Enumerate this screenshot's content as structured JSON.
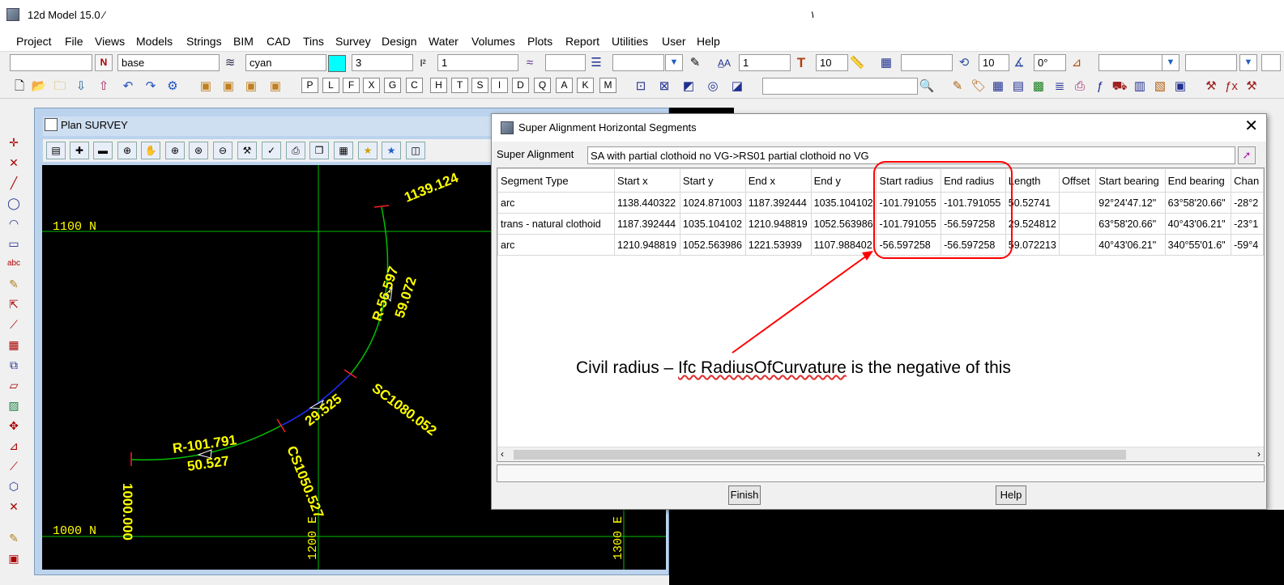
{
  "app": {
    "title": "12d Model  15.0 ⁄",
    "caret": "١"
  },
  "menu": [
    "Project",
    "File",
    "Views",
    "Models",
    "Strings",
    "BIM",
    "CAD",
    "Tins",
    "Survey",
    "Design",
    "Water",
    "Volumes",
    "Plots",
    "Report",
    "Utilities",
    "User",
    "Help"
  ],
  "toolbar1": {
    "name_field": "",
    "model_field": "base",
    "colour_field": "cyan",
    "colour_swatch": "#00ffff",
    "weight_field": "3",
    "z_field": "1",
    "text_size_field": "1",
    "text_height_field": "10",
    "count_field": "10",
    "angle_field": "0°"
  },
  "toolbar2": {
    "letters": [
      "P",
      "L",
      "F",
      "X",
      "G",
      "C",
      "H",
      "T",
      "S",
      "I",
      "D",
      "Q",
      "A",
      "K",
      "M"
    ],
    "search_value": ""
  },
  "plan": {
    "title": "Plan SURVEY",
    "labels": {
      "n1100": "1100 N",
      "n1000": "1000 N",
      "e1200": "1200 E",
      "e1300": "1300 E",
      "ch_start": "1000.000",
      "ch_end": "1139.124",
      "cs": "CS1050.527",
      "sc": "SC1080.052",
      "arc1_radius": "R-101.791",
      "arc1_len": "50.527",
      "trans_len": "29.525",
      "arc2_radius": "R-56.597",
      "arc2_len": "59.072"
    },
    "colors": {
      "grid": "#00c000",
      "text": "#ffff00",
      "arc": "#00c000",
      "transition": "#2030ff",
      "tick": "#ff2020"
    }
  },
  "dialog": {
    "title": "Super Alignment Horizontal Segments",
    "close": "✕",
    "super_alignment_label": "Super Alignment",
    "super_alignment_value": "SA with partial clothoid no VG->RS01 partial clothoid no VG",
    "columns": [
      "Segment Type",
      "Start x",
      "Start y",
      "End x",
      "End y",
      "Start radius",
      "End radius",
      "Length",
      "Offset",
      "Start bearing",
      "End bearing",
      "Chan"
    ],
    "rows": [
      [
        "arc",
        "1138.440322",
        "1024.871003",
        "1187.392444",
        "1035.104102",
        "-101.791055",
        "-101.791055",
        "50.52741",
        "",
        "92°24'47.12\"",
        "63°58'20.66\"",
        "-28°2"
      ],
      [
        "trans - natural clothoid",
        "1187.392444",
        "1035.104102",
        "1210.948819",
        "1052.563986",
        "-101.791055",
        "-56.597258",
        "29.524812",
        "",
        "63°58'20.66\"",
        "40°43'06.21\"",
        "-23°1"
      ],
      [
        "arc",
        "1210.948819",
        "1052.563986",
        "1221.53939",
        "1107.988402",
        "-56.597258",
        "-56.597258",
        "59.072213",
        "",
        "40°43'06.21\"",
        "340°55'01.6\"",
        "-59°4"
      ]
    ],
    "finish_label": "Finish",
    "help_label": "Help"
  },
  "annotation": {
    "text_before": "Civil radius – ",
    "text_ifc": "Ifc RadiusOfCurvature",
    "text_after": " is the negative of this",
    "color": "#ff0000"
  }
}
